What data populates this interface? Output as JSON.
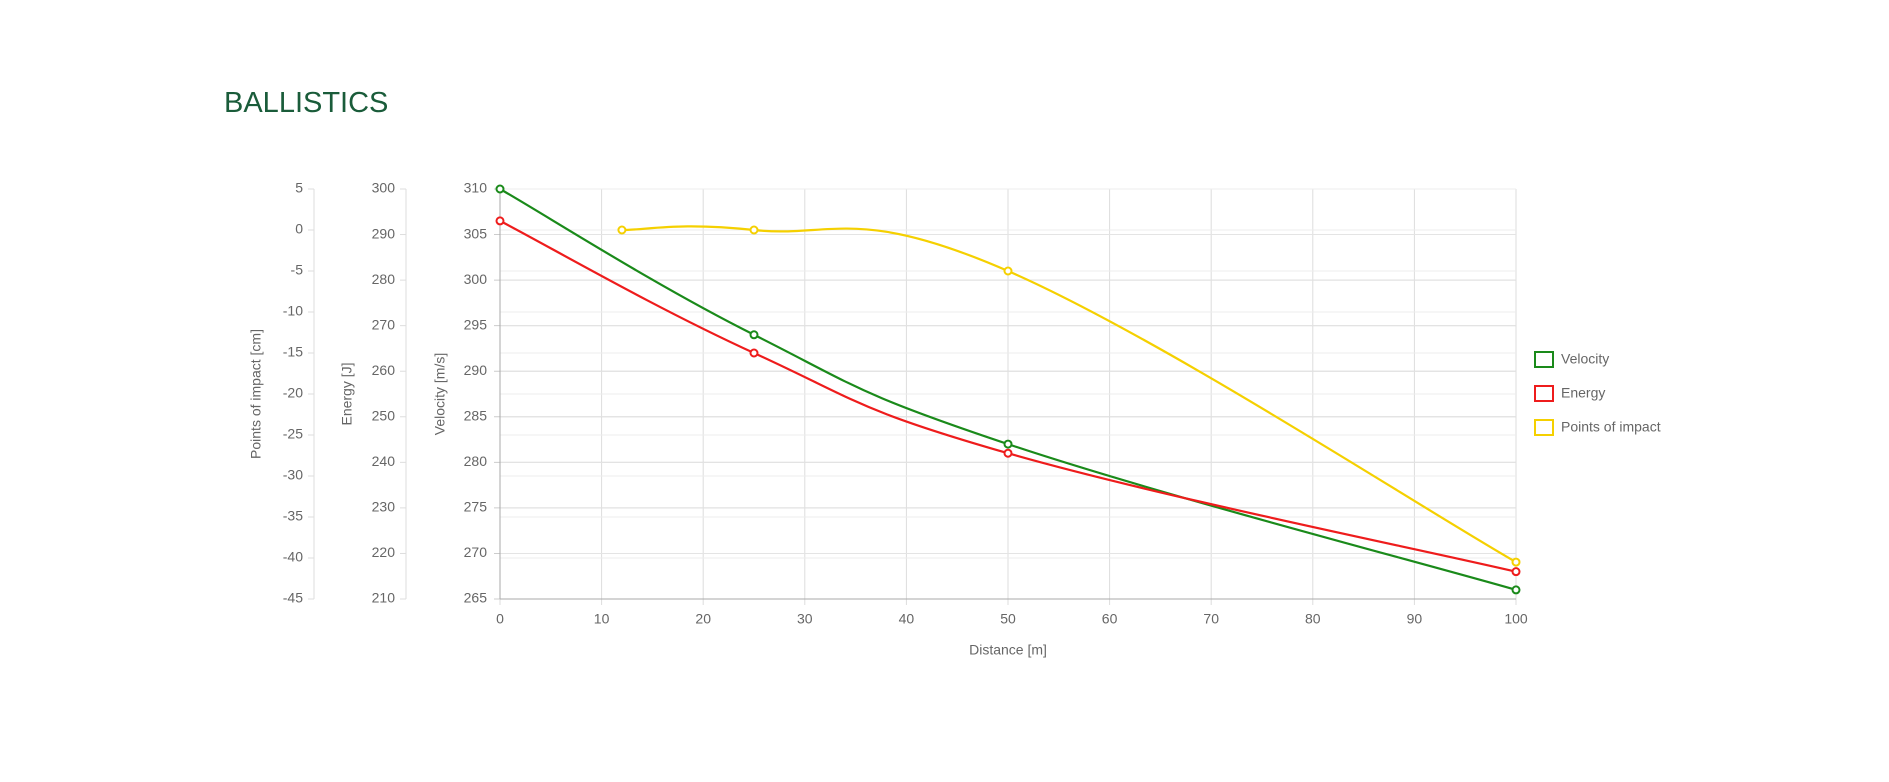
{
  "chart_data": {
    "type": "line",
    "title": "BALLISTICS",
    "xlabel": "Distance [m]",
    "ylabel": "Velocity [m/s]",
    "y2label": "Energy [J]",
    "y3label": "Points of impact [cm]",
    "xlim": [
      0,
      100
    ],
    "xticks": [
      0,
      10,
      20,
      30,
      40,
      50,
      60,
      70,
      80,
      90,
      100
    ],
    "ylim": [
      265,
      310
    ],
    "yticks": [
      265,
      270,
      275,
      280,
      285,
      290,
      295,
      300,
      305,
      310
    ],
    "y2lim": [
      210,
      300
    ],
    "y2ticks": [
      210,
      220,
      230,
      240,
      250,
      260,
      270,
      280,
      290,
      300
    ],
    "y3lim": [
      -45,
      5
    ],
    "y3ticks": [
      -45,
      -40,
      -35,
      -30,
      -25,
      -20,
      -15,
      -10,
      -5,
      0,
      5
    ],
    "grid": true,
    "legend": "right",
    "series": [
      {
        "name": "Velocity",
        "color": "#1a8a1a",
        "axis": "y",
        "x": [
          0,
          25,
          50,
          100
        ],
        "values": [
          310,
          294,
          282,
          266
        ]
      },
      {
        "name": "Energy",
        "color": "#ee1c1c",
        "axis": "y2",
        "x": [
          0,
          25,
          50,
          100
        ],
        "values": [
          293,
          264,
          242,
          216
        ]
      },
      {
        "name": "Points of impact",
        "color": "#f5d000",
        "axis": "y3",
        "x": [
          12,
          25,
          50,
          100
        ],
        "values": [
          0,
          0,
          -5,
          -40.5
        ]
      }
    ]
  }
}
